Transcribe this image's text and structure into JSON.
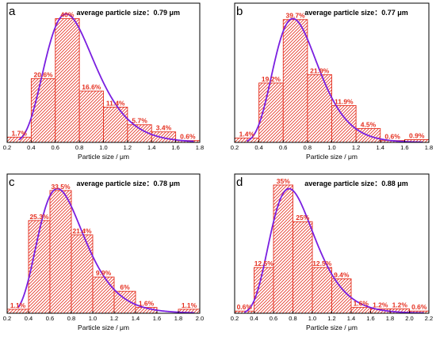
{
  "colors": {
    "bar": "#e53020",
    "curve": "#7a1fe0",
    "axis": "#000000"
  },
  "chart_data": [
    {
      "type": "bar",
      "panel": "a",
      "annotation": "average particle size：0.79 μm",
      "xlabel": "Particle size / μm",
      "xlim": [
        0.2,
        1.8
      ],
      "xticks": [
        "0.2",
        "0.4",
        "0.6",
        "0.8",
        "1.0",
        "1.2",
        "1.4",
        "1.6",
        "1.8"
      ],
      "bins": [
        [
          0.2,
          0.4
        ],
        [
          0.4,
          0.6
        ],
        [
          0.6,
          0.8
        ],
        [
          0.8,
          1.0
        ],
        [
          1.0,
          1.2
        ],
        [
          1.2,
          1.4
        ],
        [
          1.4,
          1.6
        ],
        [
          1.6,
          1.8
        ]
      ],
      "values": [
        1.7,
        20.6,
        40,
        16.6,
        11.4,
        5.7,
        3.4,
        0.6
      ],
      "labels": [
        "1.7%",
        "20.6%",
        "40%",
        "16.6%",
        "11.4%",
        "5.7%",
        "3.4%",
        "0.6%"
      ],
      "ymax": 45,
      "curve": {
        "mode": 0.69,
        "peak": 41.5,
        "sigma": 0.3
      }
    },
    {
      "type": "bar",
      "panel": "b",
      "annotation": "average particle size：0.77 μm",
      "xlabel": "Particle size / μm",
      "xlim": [
        0.2,
        1.8
      ],
      "xticks": [
        "0.2",
        "0.4",
        "0.6",
        "0.8",
        "1.0",
        "1.2",
        "1.4",
        "1.6",
        "1.8"
      ],
      "bins": [
        [
          0.2,
          0.4
        ],
        [
          0.4,
          0.6
        ],
        [
          0.6,
          0.8
        ],
        [
          0.8,
          1.0
        ],
        [
          1.0,
          1.2
        ],
        [
          1.2,
          1.4
        ],
        [
          1.4,
          1.6
        ],
        [
          1.6,
          1.8
        ]
      ],
      "values": [
        1.4,
        19.2,
        39.7,
        21.9,
        11.9,
        4.5,
        0.6,
        0.9
      ],
      "labels": [
        "1.4%",
        "19.2%",
        "39.7%",
        "21.9%",
        "11.9%",
        "4.5%",
        "0.6%",
        "0.9%"
      ],
      "ymax": 45,
      "curve": {
        "mode": 0.68,
        "peak": 40.0,
        "sigma": 0.27
      }
    },
    {
      "type": "bar",
      "panel": "c",
      "annotation": "average particle size：0.78 μm",
      "xlabel": "Particle size / μm",
      "xlim": [
        0.2,
        2.0
      ],
      "xticks": [
        "0.2",
        "0.4",
        "0.6",
        "0.8",
        "1.0",
        "1.2",
        "1.4",
        "1.6",
        "1.8",
        "2.0"
      ],
      "bins": [
        [
          0.2,
          0.4
        ],
        [
          0.4,
          0.6
        ],
        [
          0.6,
          0.8
        ],
        [
          0.8,
          1.0
        ],
        [
          1.0,
          1.2
        ],
        [
          1.2,
          1.4
        ],
        [
          1.4,
          1.6
        ],
        [
          1.8,
          2.0
        ]
      ],
      "values": [
        1.1,
        25.3,
        33.5,
        21.4,
        9.9,
        6,
        1.6,
        1.1
      ],
      "labels": [
        "1.1%",
        "25.3%",
        "33.5%",
        "21.4%",
        "9.9%",
        "6%",
        "1.6%",
        "1.1%"
      ],
      "ymax": 38,
      "curve": {
        "mode": 0.67,
        "peak": 34.0,
        "sigma": 0.32
      }
    },
    {
      "type": "bar",
      "panel": "d",
      "annotation": "average particle size：0.88 μm",
      "xlabel": "Particle size / μm",
      "xlim": [
        0.2,
        2.2
      ],
      "xticks": [
        "0.2",
        "0.4",
        "0.6",
        "0.8",
        "1.0",
        "1.2",
        "1.4",
        "1.6",
        "1.8",
        "2.0",
        "2.2"
      ],
      "bins": [
        [
          0.2,
          0.4
        ],
        [
          0.4,
          0.6
        ],
        [
          0.6,
          0.8
        ],
        [
          0.8,
          1.0
        ],
        [
          1.0,
          1.2
        ],
        [
          1.2,
          1.4
        ],
        [
          1.4,
          1.6
        ],
        [
          1.6,
          1.8
        ],
        [
          1.8,
          2.0
        ],
        [
          2.0,
          2.2
        ]
      ],
      "values": [
        0.6,
        12.5,
        35,
        25,
        12.5,
        9.4,
        1.6,
        1.2,
        1.2,
        0.6
      ],
      "labels": [
        "0.6%",
        "12.5%",
        "35%",
        "25%",
        "12.5%",
        "9.4%",
        "1.6%",
        "1.2%",
        "1.2%",
        "0.6%"
      ],
      "ymax": 38,
      "curve": {
        "mode": 0.76,
        "peak": 34.0,
        "sigma": 0.3
      }
    }
  ]
}
